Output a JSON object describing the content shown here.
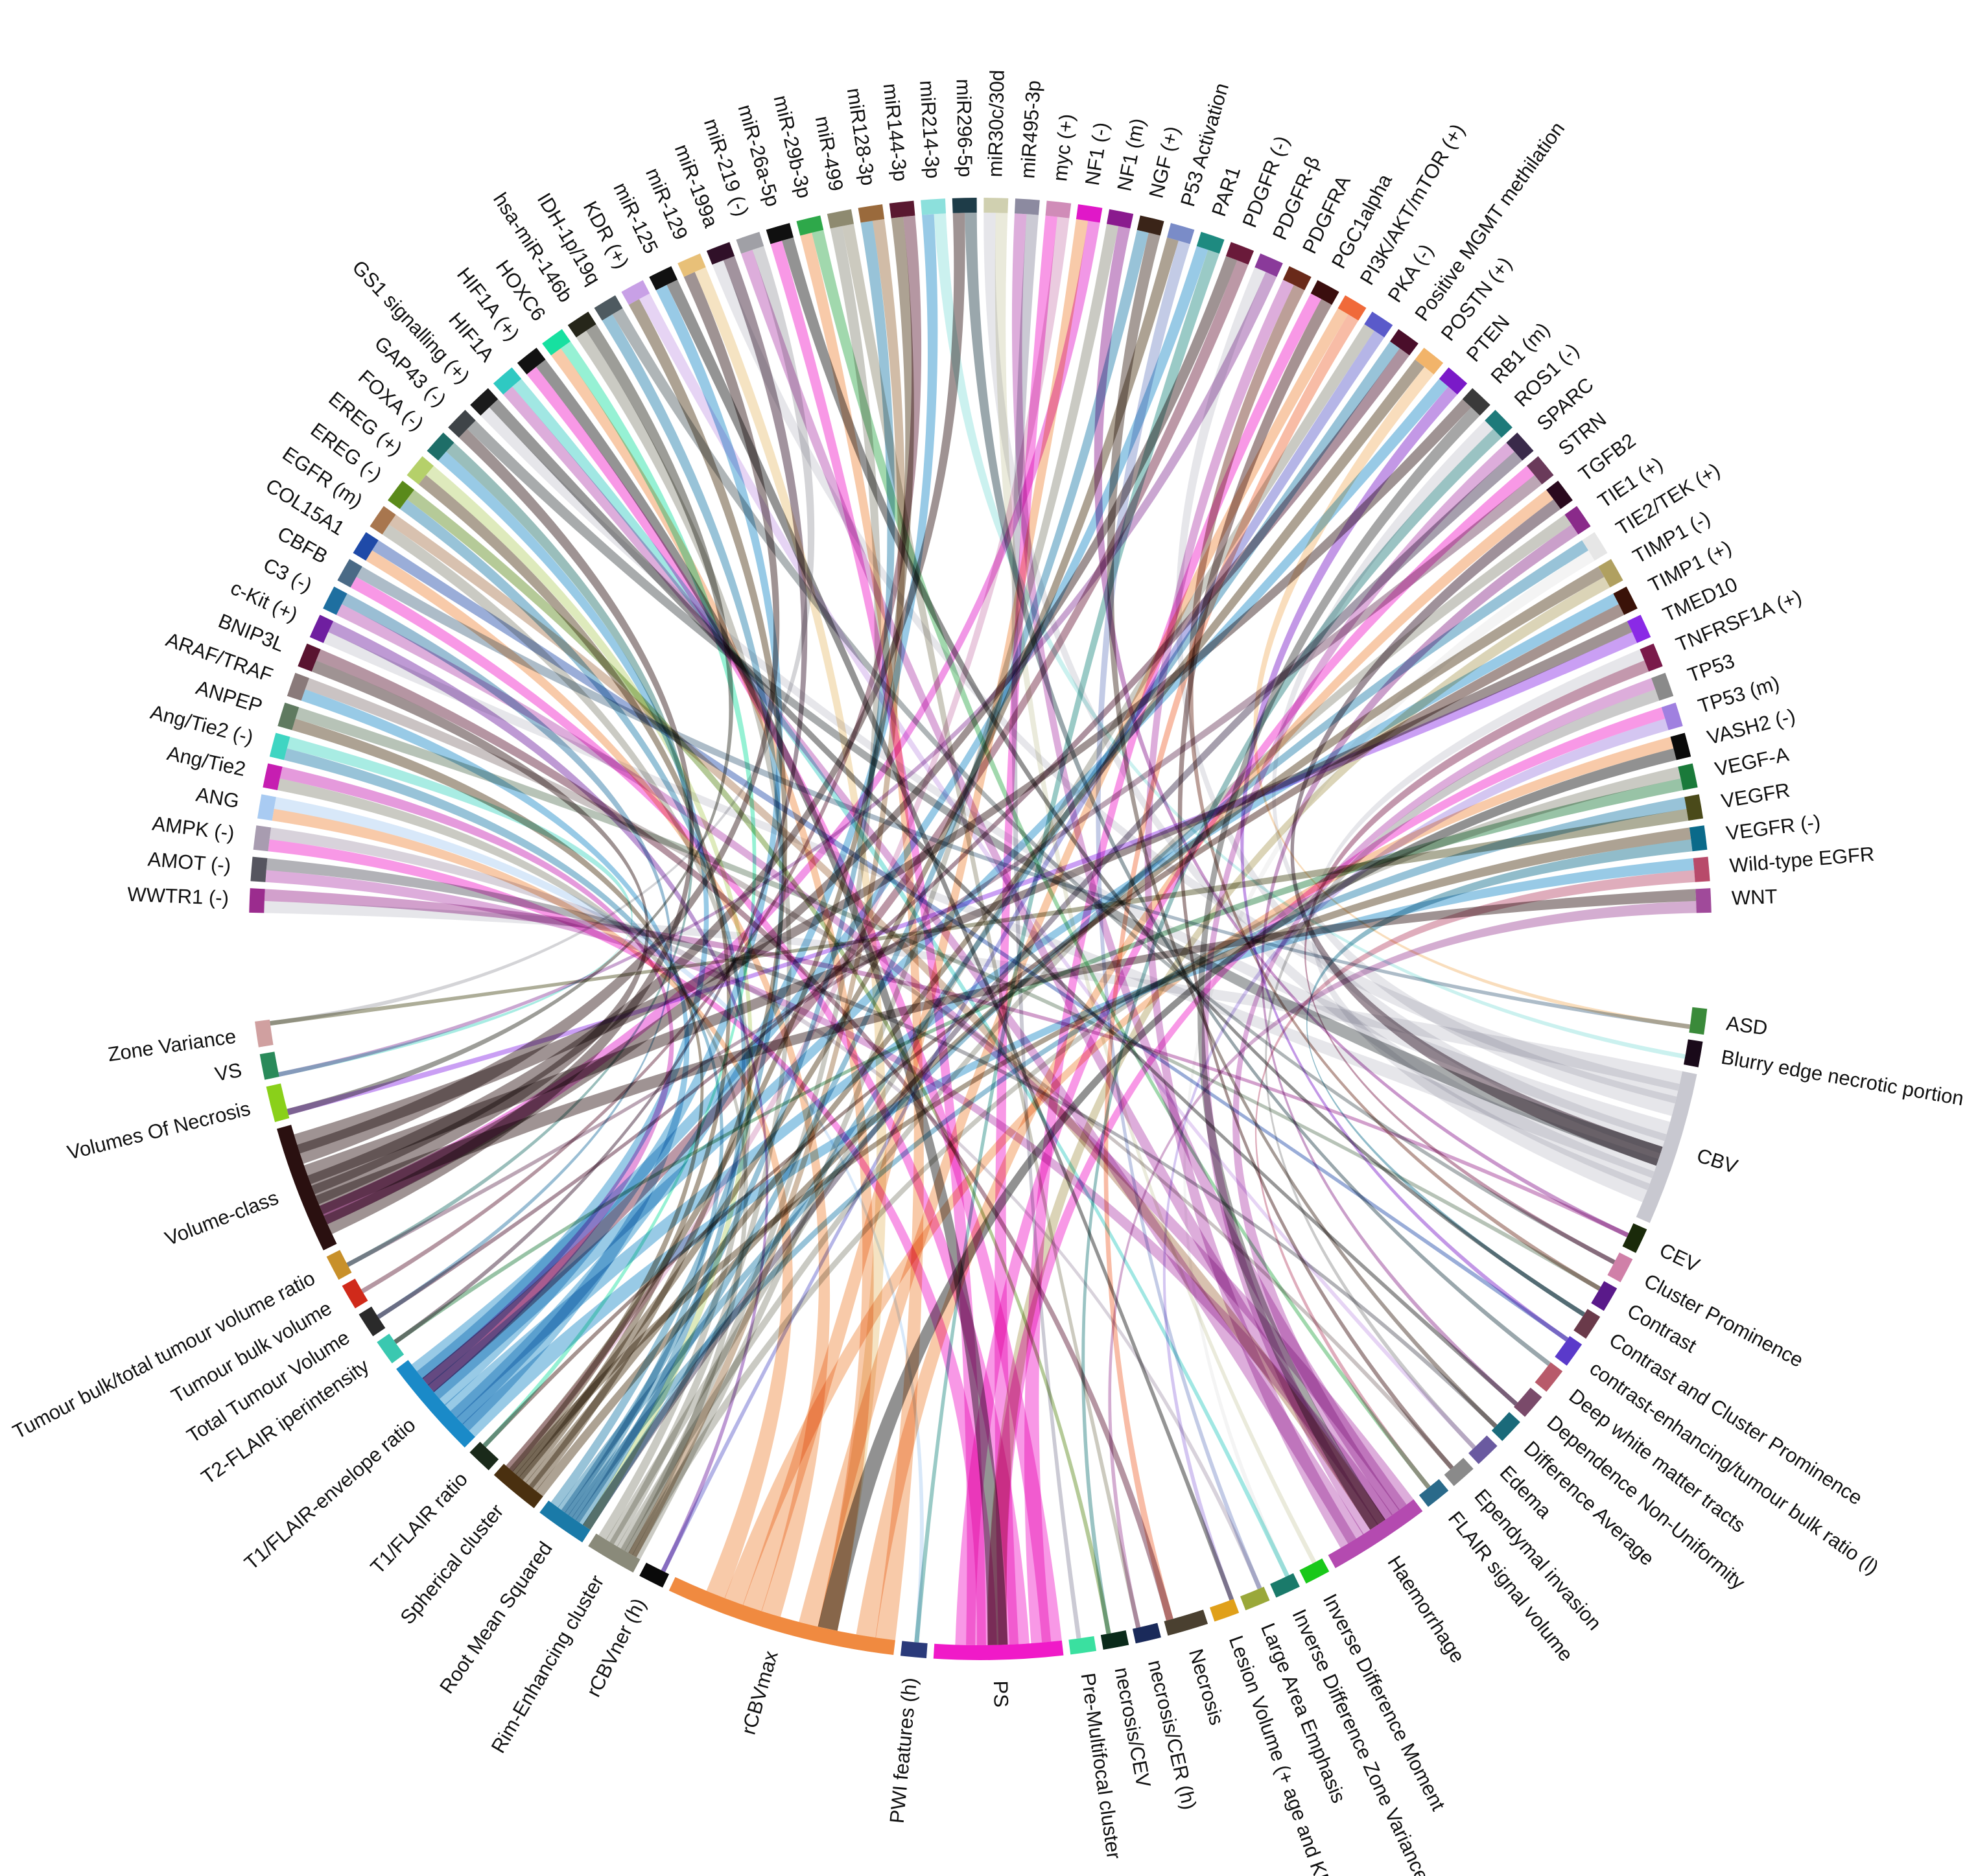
{
  "chart_data": {
    "type": "chord",
    "title": "",
    "top_group": [
      {
        "label": "WWTR1 (-)",
        "color": "#9B2C8E"
      },
      {
        "label": "AMOT (-)",
        "color": "#55555F"
      },
      {
        "label": "AMPK (-)",
        "color": "#A89CB0"
      },
      {
        "label": "ANG",
        "color": "#A9CBF2"
      },
      {
        "label": "Ang/Tie2",
        "color": "#C61EB1"
      },
      {
        "label": "Ang/Tie2 (-)",
        "color": "#3FD5C2"
      },
      {
        "label": "ANPEP",
        "color": "#5F7A60"
      },
      {
        "label": "ARAF/TRAF",
        "color": "#8A7A7A"
      },
      {
        "label": "BNIP3L",
        "color": "#5A1430"
      },
      {
        "label": "c-Kit (+)",
        "color": "#6F1FA0"
      },
      {
        "label": "C3 (-)",
        "color": "#1E6FA0"
      },
      {
        "label": "CBFB",
        "color": "#4A6A86"
      },
      {
        "label": "COL15A1",
        "color": "#1F4AA8"
      },
      {
        "label": "EGFR (m)",
        "color": "#A8764E"
      },
      {
        "label": "EREG (-)",
        "color": "#5A8A1A"
      },
      {
        "label": "EREG (+)",
        "color": "#B5D06A"
      },
      {
        "label": "FOXA (-)",
        "color": "#1E6E68"
      },
      {
        "label": "GAP43 (-)",
        "color": "#3F4448"
      },
      {
        "label": "GS1 signalling (+)",
        "color": "#1B1B1B"
      },
      {
        "label": "HIF1A",
        "color": "#2FC9C2"
      },
      {
        "label": "HIF1A (+)",
        "color": "#121212"
      },
      {
        "label": "HOXC6",
        "color": "#17E0A0"
      },
      {
        "label": "hsa-miR-146b",
        "color": "#26261A"
      },
      {
        "label": "IDH-1p/19q",
        "color": "#4E5A60"
      },
      {
        "label": "KDR (+)",
        "color": "#C8A0E6"
      },
      {
        "label": "miR-125",
        "color": "#111111"
      },
      {
        "label": "miR-129",
        "color": "#E8C078"
      },
      {
        "label": "miR-199a",
        "color": "#301028"
      },
      {
        "label": "miR-219 (-)",
        "color": "#A0A0A6"
      },
      {
        "label": "miR-26a-5p",
        "color": "#101010"
      },
      {
        "label": "miR-29b-3p",
        "color": "#2EA84A"
      },
      {
        "label": "miR-499",
        "color": "#8E8A70"
      },
      {
        "label": "miR128-3p",
        "color": "#9A6A3C"
      },
      {
        "label": "miR144-3p",
        "color": "#5A1830"
      },
      {
        "label": "miR214-3p",
        "color": "#8CE0DC"
      },
      {
        "label": "miR296-5p",
        "color": "#1E3C48"
      },
      {
        "label": "miR30c/30d",
        "color": "#D0D0B0"
      },
      {
        "label": "miR495-3p",
        "color": "#8C8AA0"
      },
      {
        "label": "myc (+)",
        "color": "#D08CB8"
      },
      {
        "label": "NF1 (-)",
        "color": "#E018C8"
      },
      {
        "label": "NF1 (m)",
        "color": "#8A1A8E"
      },
      {
        "label": "NGF (+)",
        "color": "#3A2418"
      },
      {
        "label": "P53 Activation",
        "color": "#7A8CC8"
      },
      {
        "label": "PAR1",
        "color": "#1E8A80"
      },
      {
        "label": "PDGFR (-)",
        "color": "#6A1A3A"
      },
      {
        "label": "PDGFR-β",
        "color": "#8A3A9A"
      },
      {
        "label": "PDGFRA",
        "color": "#6A2A1A"
      },
      {
        "label": "PGC1alpha",
        "color": "#3A0E0E"
      },
      {
        "label": "PI3K/AKT/mTOR (+)",
        "color": "#F06A3A"
      },
      {
        "label": "PKA (-)",
        "color": "#5A5ACA"
      },
      {
        "label": "Positive MGMT methilation",
        "color": "#4A0E2A"
      },
      {
        "label": "POSTN (+)",
        "color": "#F2B46A"
      },
      {
        "label": "PTEN",
        "color": "#7A1AC8"
      },
      {
        "label": "RB1 (m)",
        "color": "#3A3A3A"
      },
      {
        "label": "ROS1 (-)",
        "color": "#1E7A7A"
      },
      {
        "label": "SPARC",
        "color": "#3A2A4A"
      },
      {
        "label": "STRN",
        "color": "#6A3A5A"
      },
      {
        "label": "TGFB2",
        "color": "#2A0A1E"
      },
      {
        "label": "TIE1 (+)",
        "color": "#8A2A8A"
      },
      {
        "label": "TIE2/TEK (+)",
        "color": "#E6E6E6"
      },
      {
        "label": "TIMP1 (-)",
        "color": "#B0A060"
      },
      {
        "label": "TIMP1 (+)",
        "color": "#3A1208"
      },
      {
        "label": "TMED10",
        "color": "#8A2AE6"
      },
      {
        "label": "TNFRSF1A (+)",
        "color": "#7A1A4A"
      },
      {
        "label": "TP53",
        "color": "#8A8A8A"
      },
      {
        "label": "TP53 (m)",
        "color": "#A080E0"
      },
      {
        "label": "VASH2 (-)",
        "color": "#0A0A0A"
      },
      {
        "label": "VEGF-A",
        "color": "#1A7A3A"
      },
      {
        "label": "VEGFR",
        "color": "#4A4A1A"
      },
      {
        "label": "VEGFR (-)",
        "color": "#0A6A8A"
      },
      {
        "label": "Wild-type EGFR",
        "color": "#B84A6A"
      },
      {
        "label": "WNT",
        "color": "#A04A9A"
      }
    ],
    "bottom_group": [
      {
        "label": "ASD",
        "color": "#3A8A3A"
      },
      {
        "label": "Blurry edge necrotic portion",
        "color": "#1A0A1A"
      },
      {
        "label": "CBV",
        "color": "#C8C8D0"
      },
      {
        "label": "CEV",
        "color": "#1A2A0A"
      },
      {
        "label": "Cluster Prominence",
        "color": "#D080A8"
      },
      {
        "label": "Contrast",
        "color": "#5A1A8A"
      },
      {
        "label": "Contrast and Cluster Prominence",
        "color": "#6A3A4A"
      },
      {
        "label": "contrast-enhancing/tumour bulk ratio (l)",
        "color": "#5A3ACA"
      },
      {
        "label": "Deep white matter tracts",
        "color": "#B85A6A"
      },
      {
        "label": "Dependence Non-Uniformity",
        "color": "#7A4A6A"
      },
      {
        "label": "Difference Average",
        "color": "#1A6A7A"
      },
      {
        "label": "Edema",
        "color": "#6A5AA0"
      },
      {
        "label": "Ependymal invasion",
        "color": "#8A8A8A"
      },
      {
        "label": "FLAIR signal volume",
        "color": "#2A6A8A"
      },
      {
        "label": "Haemorrhage",
        "color": "#B44AB0"
      },
      {
        "label": "Inverse Difference Moment",
        "color": "#1AC81A"
      },
      {
        "label": "Inverse Difference Zone Variance",
        "color": "#1A7A6A"
      },
      {
        "label": "Large Area Emphasis",
        "color": "#9AA83A"
      },
      {
        "label": "Lesion Volume (+ age and KPS)",
        "color": "#E0A01A"
      },
      {
        "label": "Necrosis",
        "color": "#4A4030"
      },
      {
        "label": "necrosis/CER (h)",
        "color": "#1A2A5A"
      },
      {
        "label": "necrosis/CEV",
        "color": "#0A2A1A"
      },
      {
        "label": "Pre-Multifocal cluster",
        "color": "#3AE0A0"
      },
      {
        "label": "PS",
        "color": "#F01AC8"
      },
      {
        "label": "PWI features (h)",
        "color": "#2A3A7A"
      },
      {
        "label": "rCBVmax",
        "color": "#F08A40"
      },
      {
        "label": "rCBVner (h)",
        "color": "#0A0A0A"
      },
      {
        "label": "Rim-Enhancing cluster",
        "color": "#8A8A7A"
      },
      {
        "label": "Root Mean Squared",
        "color": "#1A7AA8"
      },
      {
        "label": "Spherical cluster",
        "color": "#4A3010"
      },
      {
        "label": "T1/FLAIR ratio",
        "color": "#1A2A1A"
      },
      {
        "label": "T1/FLAIR-envelope ratio",
        "color": "#1A8AC8"
      },
      {
        "label": "T2-FLAIR iperintensity",
        "color": "#3AC8B0"
      },
      {
        "label": "Total Tumour Volume",
        "color": "#2A2A2A"
      },
      {
        "label": "Tumour bulk volume",
        "color": "#D02A1A"
      },
      {
        "label": "Tumour bulk/total tumour volume ratio",
        "color": "#C8902A"
      },
      {
        "label": "Volume-class",
        "color": "#2A1010"
      },
      {
        "label": "Volumes Of Necrosis",
        "color": "#8AD01A"
      },
      {
        "label": "VS",
        "color": "#2A8A5A"
      },
      {
        "label": "Zone Variance",
        "color": "#D0A0A0"
      }
    ]
  }
}
